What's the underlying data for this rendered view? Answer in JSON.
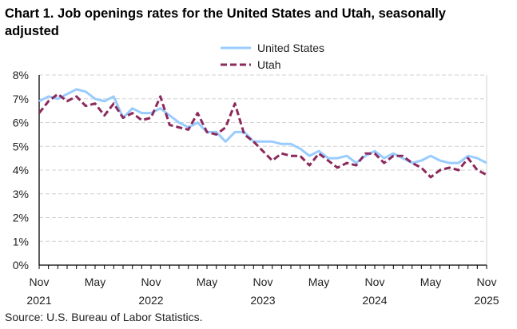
{
  "chart_data": {
    "type": "line",
    "title": "Chart 1. Job openings rates for the United States and Utah, seasonally adjusted",
    "source": "Source: U.S. Bureau of Labor Statistics.",
    "ylim": [
      0,
      8
    ],
    "y_ticks": [
      "0%",
      "1%",
      "2%",
      "3%",
      "4%",
      "5%",
      "6%",
      "7%",
      "8%"
    ],
    "x_ticks": [
      {
        "month": "Nov",
        "year": "2021",
        "index": 0
      },
      {
        "month": "May",
        "year": "",
        "index": 6
      },
      {
        "month": "Nov",
        "year": "2022",
        "index": 12
      },
      {
        "month": "May",
        "year": "",
        "index": 18
      },
      {
        "month": "Nov",
        "year": "2023",
        "index": 24
      },
      {
        "month": "May",
        "year": "",
        "index": 30
      },
      {
        "month": "Nov",
        "year": "2024",
        "index": 36
      },
      {
        "month": "May",
        "year": "",
        "index": 42
      },
      {
        "month": "Nov",
        "year": "2025",
        "index": 48
      }
    ],
    "x_range": [
      "Nov 2021",
      "Nov 2025"
    ],
    "grid": "horizontal dashed",
    "legend_position": "top-center",
    "series": [
      {
        "name": "United States",
        "color": "#99ccff",
        "style": "solid",
        "values": [
          6.9,
          7.1,
          7.0,
          7.2,
          7.4,
          7.3,
          7.0,
          6.9,
          7.1,
          6.2,
          6.6,
          6.4,
          6.4,
          6.6,
          6.3,
          6.0,
          5.8,
          6.0,
          5.6,
          5.6,
          5.2,
          5.6,
          5.6,
          5.2,
          5.2,
          5.2,
          5.1,
          5.1,
          4.9,
          4.6,
          4.8,
          4.5,
          4.5,
          4.6,
          4.3,
          4.6,
          4.8,
          4.5,
          4.7,
          4.5,
          4.3,
          4.4,
          4.6,
          4.4,
          4.3,
          4.3,
          4.6,
          4.5,
          4.3
        ]
      },
      {
        "name": "Utah",
        "color": "#8b2a5c",
        "style": "dashed",
        "values": [
          6.4,
          6.9,
          7.2,
          6.9,
          7.1,
          6.7,
          6.8,
          6.3,
          6.8,
          6.2,
          6.4,
          6.1,
          6.2,
          7.1,
          5.9,
          5.8,
          5.7,
          6.4,
          5.6,
          5.5,
          5.8,
          6.8,
          5.5,
          5.2,
          4.8,
          4.4,
          4.7,
          4.6,
          4.6,
          4.2,
          4.7,
          4.4,
          4.1,
          4.3,
          4.2,
          4.7,
          4.7,
          4.3,
          4.6,
          4.6,
          4.3,
          4.1,
          3.7,
          4.0,
          4.1,
          4.0,
          4.5,
          4.0,
          3.8
        ]
      }
    ]
  }
}
